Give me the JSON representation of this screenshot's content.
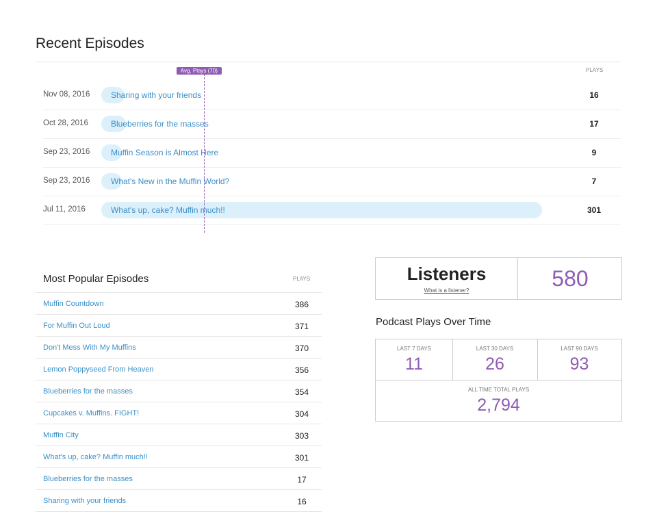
{
  "recent": {
    "title": "Recent Episodes",
    "avg_label": "Avg. Plays (70)",
    "plays_header": "PLAYS",
    "rows": [
      {
        "date": "Nov 08, 2016",
        "title": "Sharing with your friends",
        "plays": 16
      },
      {
        "date": "Oct 28, 2016",
        "title": "Blueberries for the masses",
        "plays": 17
      },
      {
        "date": "Sep 23, 2016",
        "title": "Muffin Season is Almost Here",
        "plays": 9
      },
      {
        "date": "Sep 23, 2016",
        "title": "What's New in the Muffin World?",
        "plays": 7
      },
      {
        "date": "Jul 11, 2016",
        "title": "What's up, cake? Muffin much!!",
        "plays": 301
      }
    ]
  },
  "popular": {
    "title": "Most Popular Episodes",
    "plays_header": "PLAYS",
    "rows": [
      {
        "title": "Muffin Countdown",
        "plays": 386
      },
      {
        "title": "For Muffin Out Loud",
        "plays": 371
      },
      {
        "title": "Don't Mess With My Muffins",
        "plays": 370
      },
      {
        "title": "Lemon Poppyseed From Heaven",
        "plays": 356
      },
      {
        "title": "Blueberries for the masses",
        "plays": 354
      },
      {
        "title": "Cupcakes v. Muffins. FIGHT!",
        "plays": 304
      },
      {
        "title": "Muffin City",
        "plays": 303
      },
      {
        "title": "What's up, cake? Muffin much!!",
        "plays": 301
      },
      {
        "title": "Blueberries for the masses",
        "plays": 17
      },
      {
        "title": "Sharing with your friends",
        "plays": 16
      }
    ]
  },
  "listeners": {
    "title": "Listeners",
    "link": "What is a listener?",
    "value": 580
  },
  "plays_over_time": {
    "title": "Podcast Plays Over Time",
    "periods": [
      {
        "label": "LAST 7 DAYS",
        "value": 11
      },
      {
        "label": "LAST 30 DAYS",
        "value": 26
      },
      {
        "label": "LAST 90 DAYS",
        "value": 93
      }
    ],
    "all_time": {
      "label": "ALL TIME TOTAL PLAYS",
      "value": "2,794"
    }
  }
}
